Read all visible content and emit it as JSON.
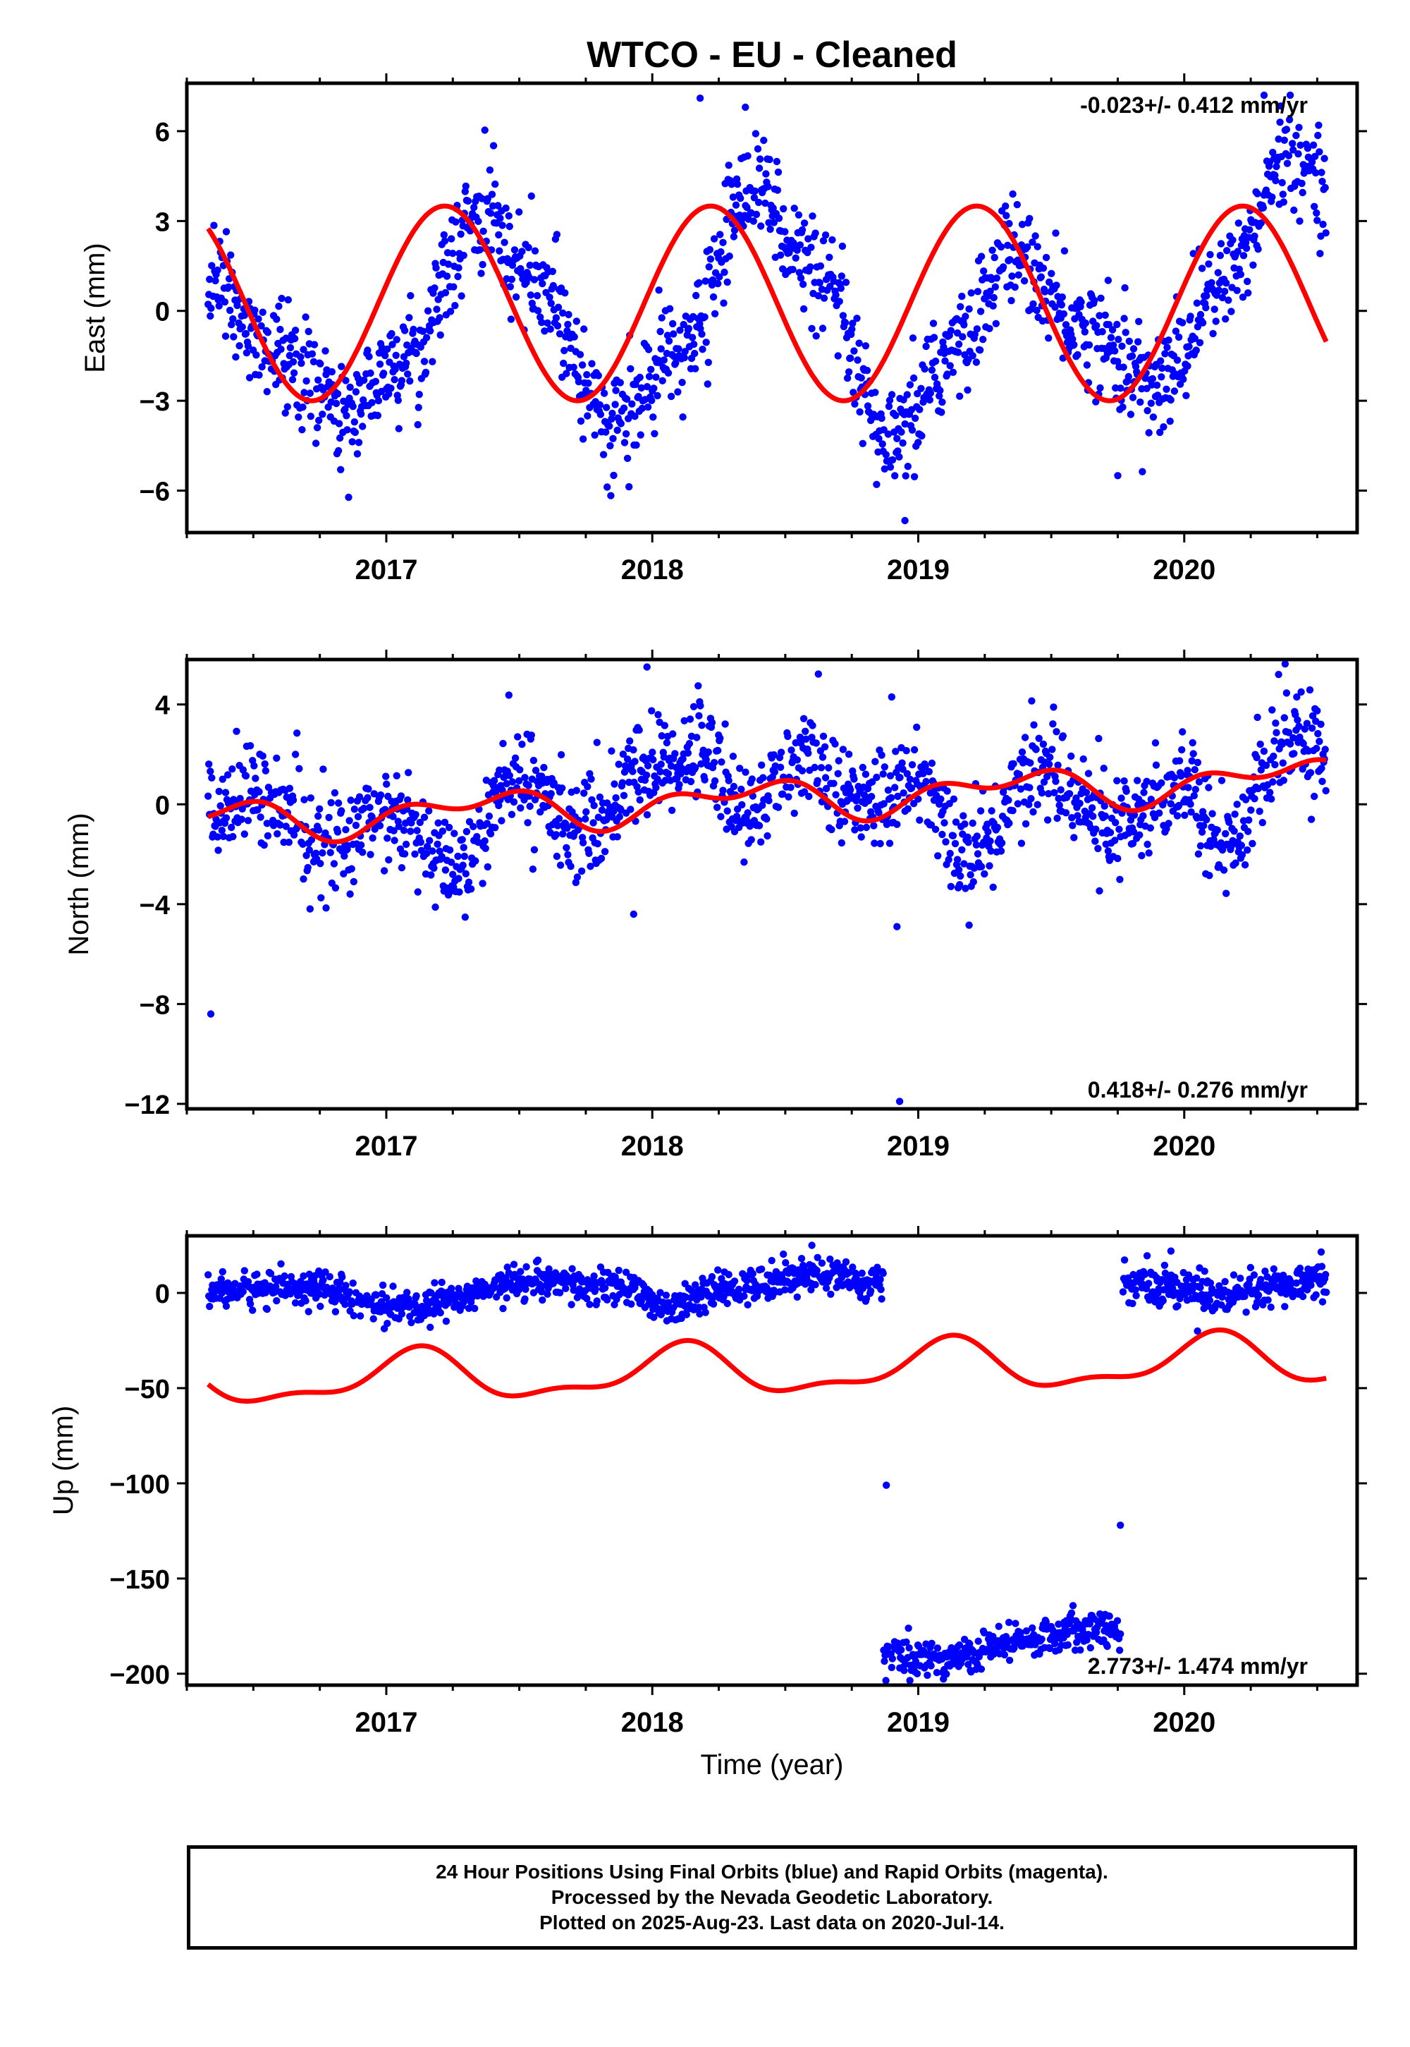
{
  "title": "WTCO  - EU - Cleaned",
  "colors": {
    "points": "#0000ff",
    "fit": "#ff0000",
    "frame": "#000000"
  },
  "footer": {
    "line1": "24 Hour Positions Using Final Orbits (blue) and Rapid Orbits (magenta).",
    "line2": "Processed by the Nevada Geodetic Laboratory.",
    "line3": "Plotted on 2025-Aug-23. Last data on 2020-Jul-14."
  },
  "chart_data": [
    {
      "id": "east",
      "type": "scatter",
      "ylabel": "East (mm)",
      "xlabel": "",
      "xlim": [
        2016.25,
        2020.65
      ],
      "ylim": [
        -7.4,
        7.6
      ],
      "yticks": [
        -6,
        -3,
        0,
        3,
        6
      ],
      "yticklabels": [
        "−6",
        "−3",
        "0",
        "3",
        "6"
      ],
      "xticks": [
        2017,
        2018,
        2019,
        2020
      ],
      "xticklabels": [
        "2017",
        "2018",
        "2019",
        "2020"
      ],
      "rate_label": "-0.023+/- 0.412 mm/yr",
      "rate_position": "top-right",
      "data_start": 2016.33,
      "data_end": 2020.535,
      "trend": [
        [
          2016.33,
          1.2
        ],
        [
          2016.55,
          -1.2
        ],
        [
          2016.85,
          -3.3
        ],
        [
          2017.1,
          -1.5
        ],
        [
          2017.35,
          3.4
        ],
        [
          2017.6,
          0.5
        ],
        [
          2017.85,
          -3.8
        ],
        [
          2018.1,
          -1.5
        ],
        [
          2018.38,
          4.3
        ],
        [
          2018.6,
          1.5
        ],
        [
          2018.9,
          -4.5
        ],
        [
          2019.15,
          -1.2
        ],
        [
          2019.35,
          2.0
        ],
        [
          2019.6,
          -0.5
        ],
        [
          2019.9,
          -2.5
        ],
        [
          2020.15,
          1.0
        ],
        [
          2020.38,
          5.0
        ],
        [
          2020.535,
          4.6
        ]
      ],
      "scatter_sd": 0.9,
      "outliers": [
        [
          2018.18,
          7.1
        ],
        [
          2018.35,
          6.8
        ],
        [
          2018.95,
          -7.0
        ],
        [
          2019.75,
          -5.5
        ],
        [
          2020.3,
          7.2
        ]
      ],
      "fit": {
        "offset": 0.25,
        "rate": 0,
        "ampAnnual": 3.25,
        "phaseAnnual": 1.38,
        "ampSemi": 0,
        "phaseSemi": 0
      },
      "fit_end": 2020.535
    },
    {
      "id": "north",
      "type": "scatter",
      "ylabel": "North (mm)",
      "xlabel": "",
      "xlim": [
        2016.25,
        2020.65
      ],
      "ylim": [
        -12.2,
        5.8
      ],
      "yticks": [
        -12,
        -8,
        -4,
        0,
        4
      ],
      "yticklabels": [
        "−12",
        "−8",
        "−4",
        "0",
        "4"
      ],
      "xticks": [
        2017,
        2018,
        2019,
        2020
      ],
      "xticklabels": [
        "2017",
        "2018",
        "2019",
        "2020"
      ],
      "rate_label": "0.418+/- 0.276 mm/yr",
      "rate_position": "bottom-right",
      "data_start": 2016.33,
      "data_end": 2020.535,
      "trend": [
        [
          2016.33,
          -0.5
        ],
        [
          2016.5,
          0.5
        ],
        [
          2016.75,
          -1.5
        ],
        [
          2017.0,
          -0.5
        ],
        [
          2017.25,
          -2.5
        ],
        [
          2017.5,
          1.0
        ],
        [
          2017.75,
          -1.0
        ],
        [
          2018.0,
          1.5
        ],
        [
          2018.2,
          2.2
        ],
        [
          2018.35,
          -0.5
        ],
        [
          2018.55,
          1.8
        ],
        [
          2018.8,
          0.0
        ],
        [
          2019.0,
          1.0
        ],
        [
          2019.2,
          -2.0
        ],
        [
          2019.45,
          1.5
        ],
        [
          2019.75,
          -1.0
        ],
        [
          2020.0,
          1.0
        ],
        [
          2020.15,
          -1.5
        ],
        [
          2020.4,
          2.5
        ],
        [
          2020.535,
          2.0
        ]
      ],
      "scatter_sd": 1.0,
      "outliers": [
        [
          2016.34,
          -8.4
        ],
        [
          2017.98,
          5.5
        ],
        [
          2018.9,
          4.3
        ],
        [
          2018.92,
          -4.9
        ],
        [
          2018.93,
          -11.9
        ],
        [
          2017.93,
          -4.4
        ]
      ],
      "fit": {
        "offset": 0.2,
        "rate": 0.418,
        "ampAnnual": 0.6,
        "phaseAnnual": 2.2,
        "ampSemi": 0.45,
        "phaseSemi": 0.6
      },
      "fit_end": 2020.535
    },
    {
      "id": "up",
      "type": "scatter",
      "ylabel": "Up (mm)",
      "xlabel": "Time (year)",
      "xlim": [
        2016.25,
        2020.65
      ],
      "ylim": [
        -206,
        30
      ],
      "yticks": [
        -200,
        -150,
        -100,
        -50,
        0
      ],
      "yticklabels": [
        "−200",
        "−150",
        "−100",
        "−50",
        "0"
      ],
      "xticks": [
        2017,
        2018,
        2019,
        2020
      ],
      "xticklabels": [
        "2017",
        "2018",
        "2019",
        "2020"
      ],
      "rate_label": "2.773+/- 1.474 mm/yr",
      "rate_position": "bottom-right",
      "segments": [
        {
          "start": 2016.33,
          "end": 2018.87,
          "trend": [
            [
              2016.33,
              1
            ],
            [
              2016.7,
              3
            ],
            [
              2017.05,
              -8
            ],
            [
              2017.5,
              5
            ],
            [
              2017.9,
              3
            ],
            [
              2018.05,
              -8
            ],
            [
              2018.3,
              2
            ],
            [
              2018.6,
              10
            ],
            [
              2018.87,
              5
            ]
          ],
          "sd": 4.5
        },
        {
          "start": 2018.87,
          "end": 2019.76,
          "trend": [
            [
              2018.87,
              -190
            ],
            [
              2019.1,
              -192
            ],
            [
              2019.4,
              -183
            ],
            [
              2019.6,
              -176
            ],
            [
              2019.76,
              -177
            ]
          ],
          "sd": 5
        },
        {
          "start": 2019.77,
          "end": 2020.535,
          "trend": [
            [
              2019.77,
              5
            ],
            [
              2020.0,
              3
            ],
            [
              2020.15,
              -3
            ],
            [
              2020.4,
              3
            ],
            [
              2020.535,
              6
            ]
          ],
          "sd": 5
        }
      ],
      "outliers": [
        [
          2018.88,
          -101
        ],
        [
          2019.76,
          -122
        ],
        [
          2018.6,
          25
        ],
        [
          2019.95,
          22
        ],
        [
          2020.05,
          -20
        ]
      ],
      "fit": {
        "offset": -41,
        "rate": 2.773,
        "ampAnnual": 12,
        "phaseAnnual": 0.7,
        "ampSemi": 5,
        "phaseSemi": 1.8
      },
      "fit_end": 2020.535
    }
  ]
}
